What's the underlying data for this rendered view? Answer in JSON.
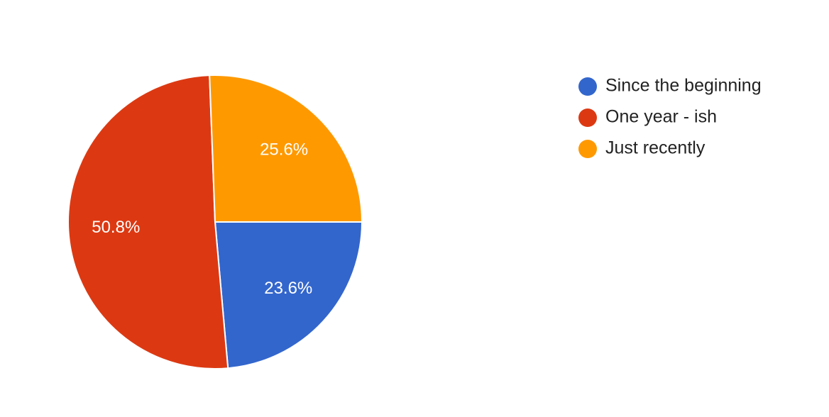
{
  "chart_data": {
    "type": "pie",
    "categories": [
      "Since the beginning",
      "One year - ish",
      "Just recently"
    ],
    "values": [
      23.6,
      50.8,
      25.6
    ],
    "value_labels": [
      "23.6%",
      "50.8%",
      "25.6%"
    ],
    "colors": [
      "#3366cc",
      "#dc3912",
      "#ff9900"
    ],
    "legend": "right"
  }
}
